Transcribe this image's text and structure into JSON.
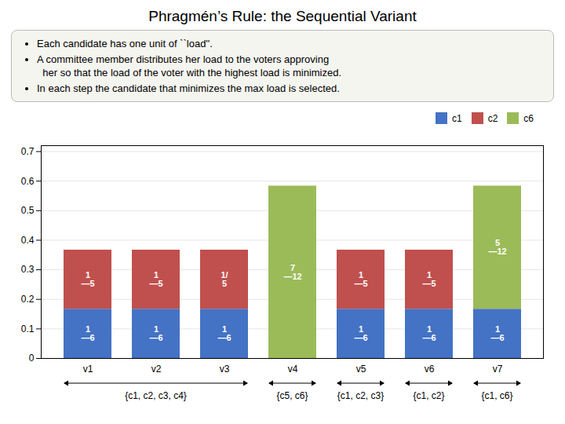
{
  "chart_data": {
    "type": "bar",
    "title": "Phragmén’s Rule: the Sequential Variant",
    "subtitle": [
      "Each candidate has one unit of ``load''.",
      "A committee member distributes her load to the voters approving\n  her so that the load of the voter with the highest load is minimized.",
      "In each step the candidate that minimizes the max load is selected."
    ],
    "categories": [
      "v1",
      "v2",
      "v3",
      "v4",
      "v5",
      "v6",
      "v7"
    ],
    "series": [
      {
        "name": "c1",
        "color": "#4472C4",
        "values": [
          0.16667,
          0.16667,
          0.16667,
          0.0,
          0.16667,
          0.16667,
          0.16667
        ],
        "value_labels": [
          "1\n—6",
          "1\n—6",
          "1\n—6",
          null,
          "1\n—6",
          "1\n—6",
          "1\n—6"
        ]
      },
      {
        "name": "c2",
        "color": "#C0504D",
        "values": [
          0.2,
          0.2,
          0.2,
          0.0,
          0.2,
          0.2,
          0.0
        ],
        "value_labels": [
          "1\n—5",
          "1\n—5",
          "1/\n5",
          null,
          "1\n—5",
          "1\n—5",
          null
        ]
      },
      {
        "name": "c6",
        "color": "#9BBB59",
        "values": [
          0.0,
          0.0,
          0.0,
          0.58333,
          0.0,
          0.0,
          0.41667
        ],
        "value_labels": [
          null,
          null,
          null,
          "7\n—12",
          null,
          null,
          "5\n—12"
        ]
      }
    ],
    "stacked": true,
    "data_labels": true,
    "ylim": [
      0,
      0.72
    ],
    "yticks": [
      0,
      0.1,
      0.2,
      0.3,
      0.4,
      0.5,
      0.6,
      0.7
    ],
    "grid": true,
    "legend": "upper right",
    "annotations": [
      {
        "text": "{c1, c2, c3, c4}",
        "categories": [
          "v1",
          "v2",
          "v3"
        ]
      },
      {
        "text": "{c5, c6}",
        "categories": [
          "v4"
        ]
      },
      {
        "text": "{c1, c2, c3}",
        "categories": [
          "v5"
        ]
      },
      {
        "text": "{c1, c2}",
        "categories": [
          "v6"
        ]
      },
      {
        "text": "{c1, c6}",
        "categories": [
          "v7"
        ]
      }
    ]
  }
}
